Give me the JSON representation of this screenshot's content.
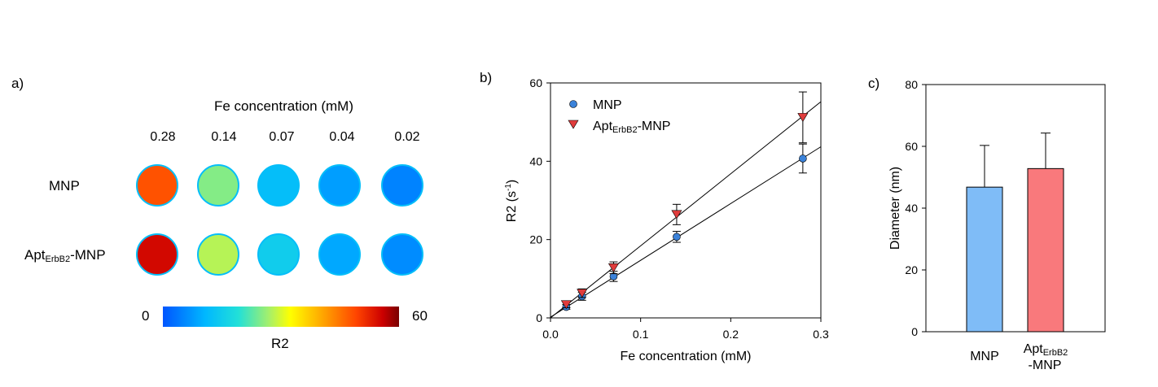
{
  "panel_a": {
    "letter": "a)",
    "title": "Fe concentration (mM)",
    "concentrations": [
      "0.28",
      "0.14",
      "0.07",
      "0.04",
      "0.02"
    ],
    "row_labels": [
      {
        "main": "MNP",
        "sub": "",
        "suffix": ""
      },
      {
        "main": "Apt",
        "sub": "ErbB2",
        "suffix": "-MNP"
      }
    ],
    "colorbar": {
      "min_label": "0",
      "max_label": "60",
      "label": "R2"
    },
    "wells": {
      "values": [
        [
          48,
          25,
          12,
          8,
          5
        ],
        [
          55,
          28,
          15,
          9,
          6
        ]
      ],
      "scale": [
        0,
        60
      ]
    }
  },
  "colors": {
    "mnp": "#3b82d9",
    "apt": "#e03c3c",
    "bar_mnp": "#7fbcf7",
    "bar_apt": "#f9797c"
  },
  "chart_data": [
    {
      "type": "scatter",
      "panel": "b)",
      "xlabel": "Fe concentration (mM)",
      "ylabel": "R2 (s",
      "ylabel_sup": "-1",
      "ylabel_end": ")",
      "xlim": [
        0,
        0.3
      ],
      "ylim": [
        0,
        60
      ],
      "xticks": [
        0.0,
        0.1,
        0.2,
        0.3
      ],
      "xtick_labels": [
        "0.0",
        "0.1",
        "0.2",
        "0.3"
      ],
      "yticks": [
        0,
        20,
        40,
        60
      ],
      "ytick_labels": [
        "0",
        "20",
        "40",
        "60"
      ],
      "legend": [
        {
          "main": "MNP",
          "sub": "",
          "suffix": ""
        },
        {
          "main": "Apt",
          "sub": "ErbB2",
          "suffix": "-MNP"
        }
      ],
      "series": [
        {
          "name": "MNP",
          "marker": "circle",
          "x": [
            0.0175,
            0.035,
            0.07,
            0.14,
            0.28
          ],
          "y": [
            2.8,
            5.5,
            10.6,
            20.7,
            40.7
          ],
          "err": [
            0.6,
            1.0,
            1.3,
            1.4,
            3.7
          ],
          "fit_slope": 145,
          "fit_intercept": 0.2
        },
        {
          "name": "AptErbB2-MNP",
          "marker": "triangle-down",
          "x": [
            0.0175,
            0.035,
            0.07,
            0.14,
            0.28
          ],
          "y": [
            3.4,
            6.3,
            12.8,
            26.4,
            51.2
          ],
          "err": [
            0.8,
            1.1,
            1.5,
            2.6,
            6.5
          ],
          "fit_slope": 185,
          "fit_intercept": -0.3
        }
      ]
    },
    {
      "type": "bar",
      "panel": "c)",
      "categories": [
        {
          "main": "MNP",
          "sub": "",
          "line2": ""
        },
        {
          "main": "Apt",
          "sub": "ErbB2",
          "line2": "-MNP"
        }
      ],
      "values": [
        46.8,
        52.8
      ],
      "err": [
        13.5,
        11.5
      ],
      "ylabel": "Diameter (nm)",
      "ylim": [
        0,
        80
      ],
      "yticks": [
        0,
        20,
        40,
        60,
        80
      ],
      "ytick_labels": [
        "0",
        "20",
        "40",
        "60",
        "80"
      ]
    }
  ]
}
